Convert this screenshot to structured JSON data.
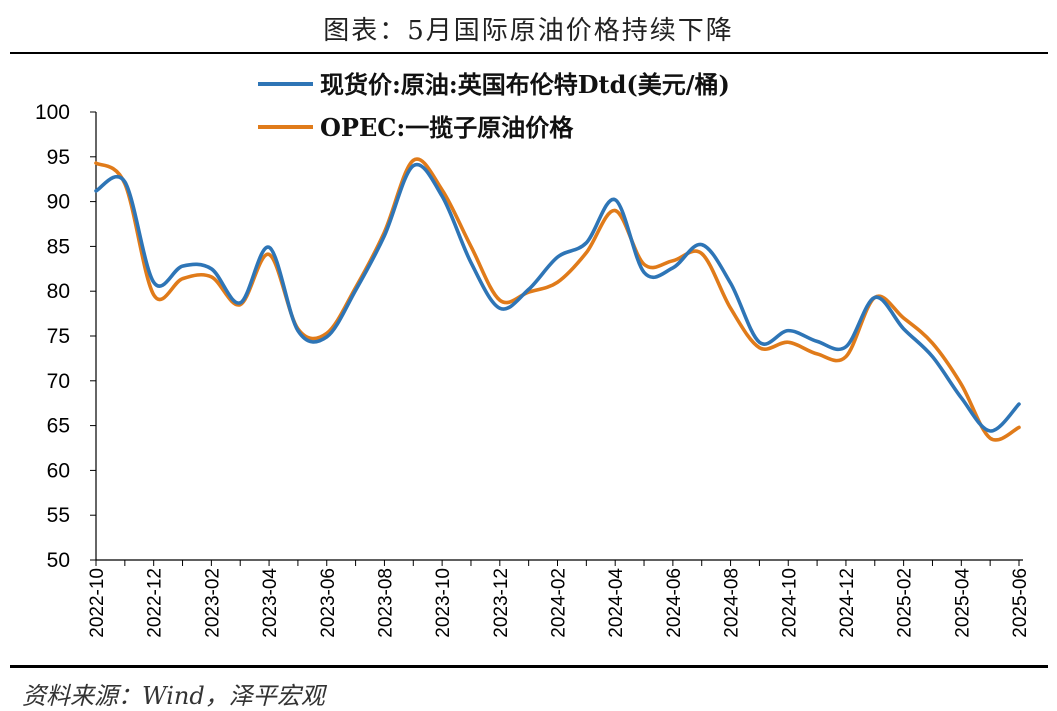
{
  "header": {
    "title": "图表：5月国际原油价格持续下降"
  },
  "footer": {
    "source": "资料来源：Wind，泽平宏观"
  },
  "chart_data": {
    "type": "line",
    "title": "图表：5月国际原油价格持续下降",
    "xlabel": "",
    "ylabel": "",
    "ylim": [
      50,
      100
    ],
    "yticks": [
      50,
      55,
      60,
      65,
      70,
      75,
      80,
      85,
      90,
      95,
      100
    ],
    "legend": "top",
    "grid": false,
    "x": [
      "2022-10",
      "2022-11",
      "2022-12",
      "2023-01",
      "2023-02",
      "2023-03",
      "2023-04",
      "2023-05",
      "2023-06",
      "2023-07",
      "2023-08",
      "2023-09",
      "2023-10",
      "2023-11",
      "2023-12",
      "2024-01",
      "2024-02",
      "2024-03",
      "2024-04",
      "2024-05",
      "2024-06",
      "2024-07",
      "2024-08",
      "2024-09",
      "2024-10",
      "2024-11",
      "2024-12",
      "2025-01",
      "2025-02",
      "2025-03",
      "2025-04",
      "2025-05",
      "2025-06"
    ],
    "xtick_labels": [
      "2022-10",
      "2022-12",
      "2023-02",
      "2023-04",
      "2023-06",
      "2023-08",
      "2023-10",
      "2023-12",
      "2024-02",
      "2024-04",
      "2024-06",
      "2024-08",
      "2024-10",
      "2024-12",
      "2025-02",
      "2025-04",
      "2025-06"
    ],
    "series": [
      {
        "name": "现货价:原油:英国布伦特Dtd(美元/桶)",
        "color": "#2E75B6",
        "values": [
          91.2,
          92.2,
          81.0,
          82.8,
          82.5,
          78.7,
          84.9,
          75.6,
          74.9,
          80.1,
          86.2,
          94.0,
          90.6,
          83.2,
          78.1,
          80.2,
          83.8,
          85.4,
          90.2,
          82.1,
          82.6,
          85.2,
          80.9,
          74.3,
          75.6,
          74.4,
          73.8,
          79.3,
          75.8,
          72.7,
          68.1,
          64.4,
          67.4
        ]
      },
      {
        "name": "OPEC:一揽子原油价格",
        "color": "#E07B1A",
        "values": [
          94.3,
          92.0,
          79.6,
          81.4,
          81.6,
          78.5,
          84.1,
          75.8,
          75.3,
          80.4,
          86.6,
          94.6,
          91.3,
          85.0,
          79.0,
          79.9,
          81.0,
          84.3,
          89.0,
          83.0,
          83.4,
          84.2,
          78.1,
          73.7,
          74.3,
          73.0,
          72.7,
          79.3,
          77.0,
          74.2,
          69.6,
          63.6,
          64.8
        ]
      }
    ]
  }
}
